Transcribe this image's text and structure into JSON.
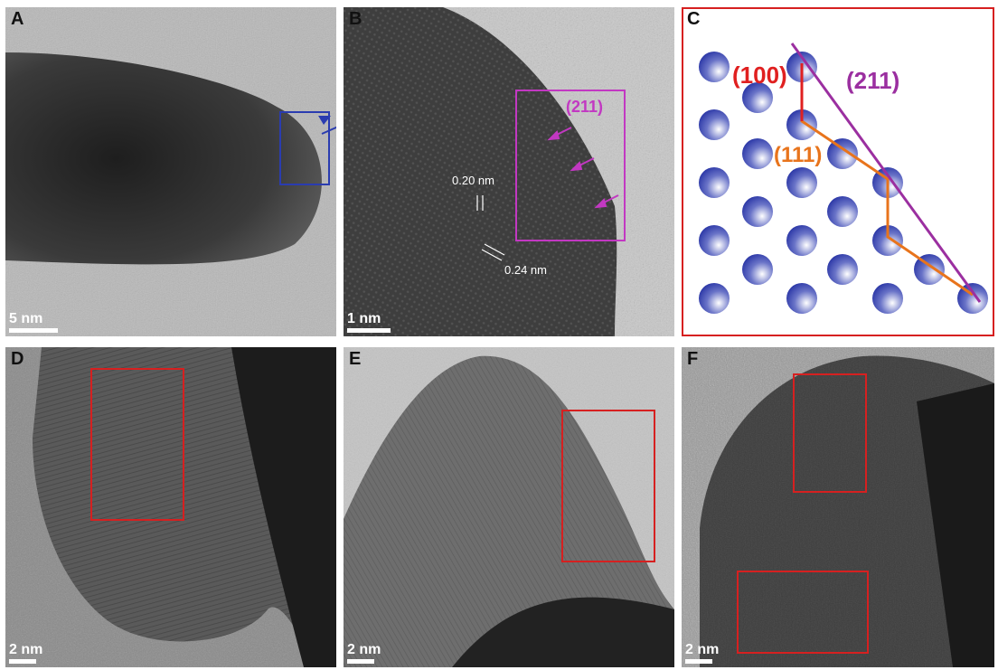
{
  "panels": {
    "a": {
      "label": "A",
      "scale_bar": "5 nm"
    },
    "b": {
      "label": "B",
      "scale_bar": "1 nm",
      "facet": "(211)",
      "spacing_1": "0.20 nm",
      "spacing_2": "0.24 nm"
    },
    "c": {
      "label": "C",
      "facet_100": "(100)",
      "facet_111": "(111)",
      "facet_211": "(211)"
    },
    "d": {
      "label": "D",
      "scale_bar": "2 nm"
    },
    "e": {
      "label": "E",
      "scale_bar": "2 nm"
    },
    "f": {
      "label": "F",
      "scale_bar": "2 nm"
    }
  },
  "colors": {
    "highlight_box": "#d62020",
    "zoom_box": "#2a3cb0",
    "facet_211": "#a33aa3",
    "facet_111": "#e8741c",
    "facet_100": "#e02020",
    "atom": "#2e3aa8"
  }
}
